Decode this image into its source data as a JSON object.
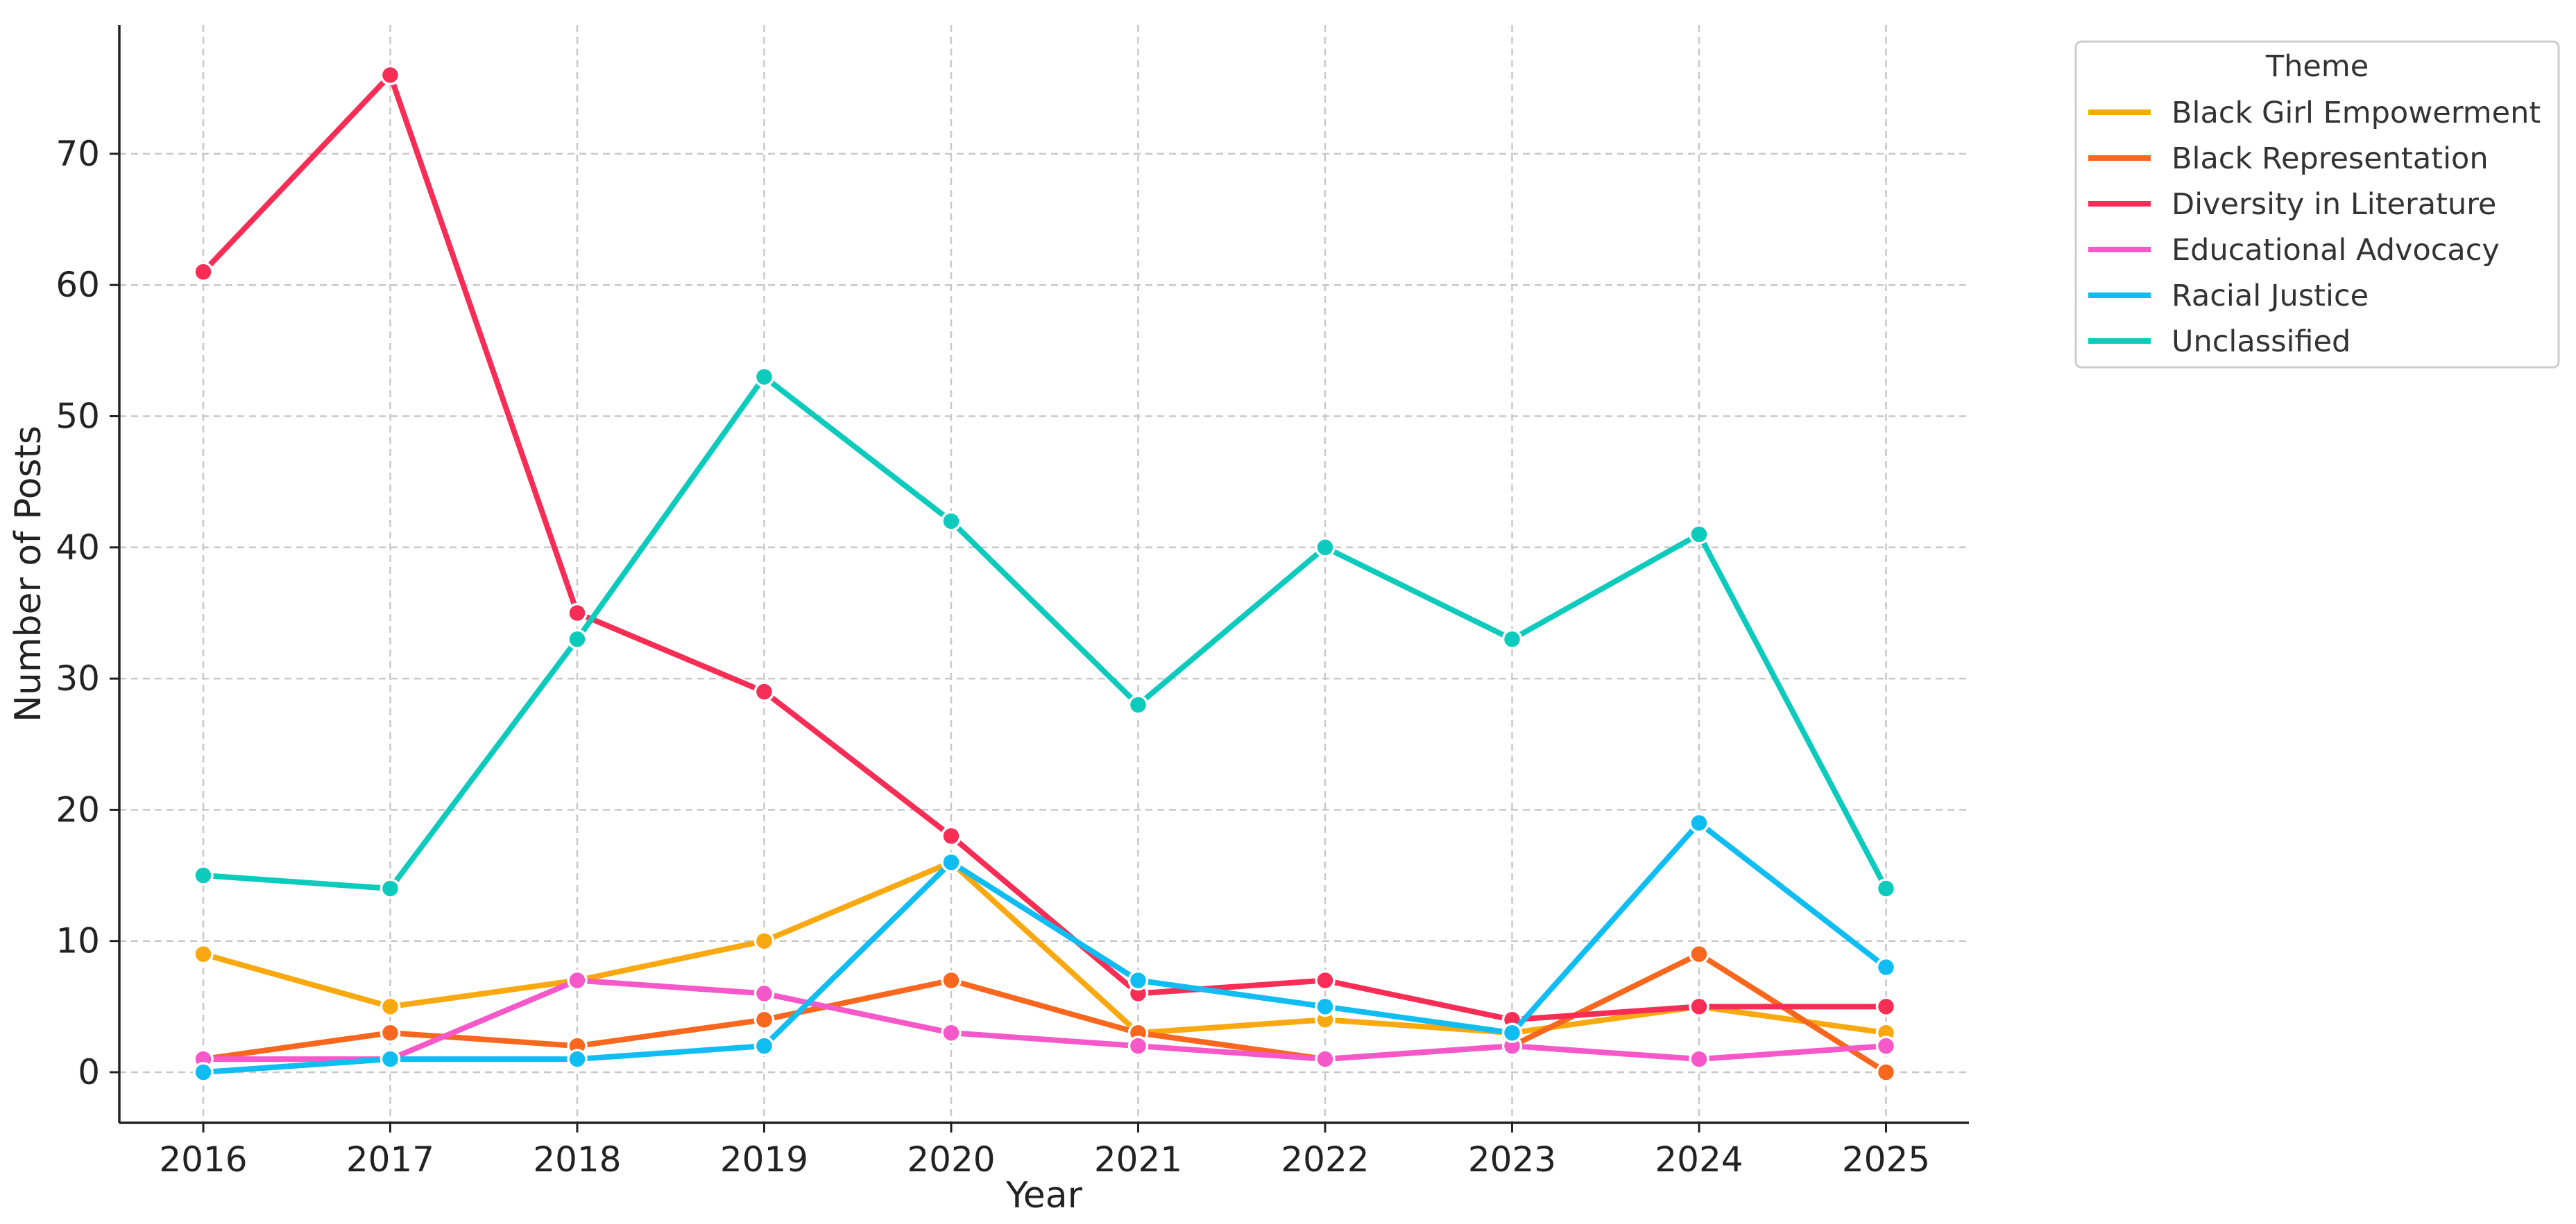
{
  "chart_data": {
    "type": "line",
    "title": "",
    "xlabel": "Year",
    "ylabel": "Number of Posts",
    "x": [
      2016,
      2017,
      2018,
      2019,
      2020,
      2021,
      2022,
      2023,
      2024,
      2025
    ],
    "x_tick_labels": [
      "2016",
      "2017",
      "2018",
      "2019",
      "2020",
      "2021",
      "2022",
      "2023",
      "2024",
      "2025"
    ],
    "ylim": [
      -4,
      80
    ],
    "y_ticks": [
      0,
      10,
      20,
      30,
      40,
      50,
      60,
      70
    ],
    "y_tick_labels": [
      "0",
      "10",
      "20",
      "30",
      "40",
      "50",
      "60",
      "70"
    ],
    "grid": true,
    "legend": {
      "title": "Theme",
      "placement": "outside-top-right"
    },
    "series": [
      {
        "name": "Black Girl Empowerment",
        "color": "#f9a90f",
        "values": [
          9,
          5,
          7,
          10,
          16,
          3,
          4,
          3,
          5,
          3
        ]
      },
      {
        "name": "Black Representation",
        "color": "#f8671d",
        "values": [
          1,
          3,
          2,
          4,
          7,
          3,
          1,
          2,
          9,
          0
        ]
      },
      {
        "name": "Diversity in Literature",
        "color": "#f72d55",
        "values": [
          61,
          76,
          35,
          29,
          18,
          6,
          7,
          4,
          5,
          5
        ]
      },
      {
        "name": "Educational Advocacy",
        "color": "#f658c9",
        "values": [
          1,
          1,
          7,
          6,
          3,
          2,
          1,
          2,
          1,
          2
        ]
      },
      {
        "name": "Racial Justice",
        "color": "#0fbdf2",
        "values": [
          0,
          1,
          1,
          2,
          16,
          7,
          5,
          3,
          19,
          8
        ]
      },
      {
        "name": "Unclassified",
        "color": "#0ccbbd",
        "values": [
          15,
          14,
          33,
          53,
          42,
          28,
          40,
          33,
          41,
          14
        ]
      }
    ]
  }
}
